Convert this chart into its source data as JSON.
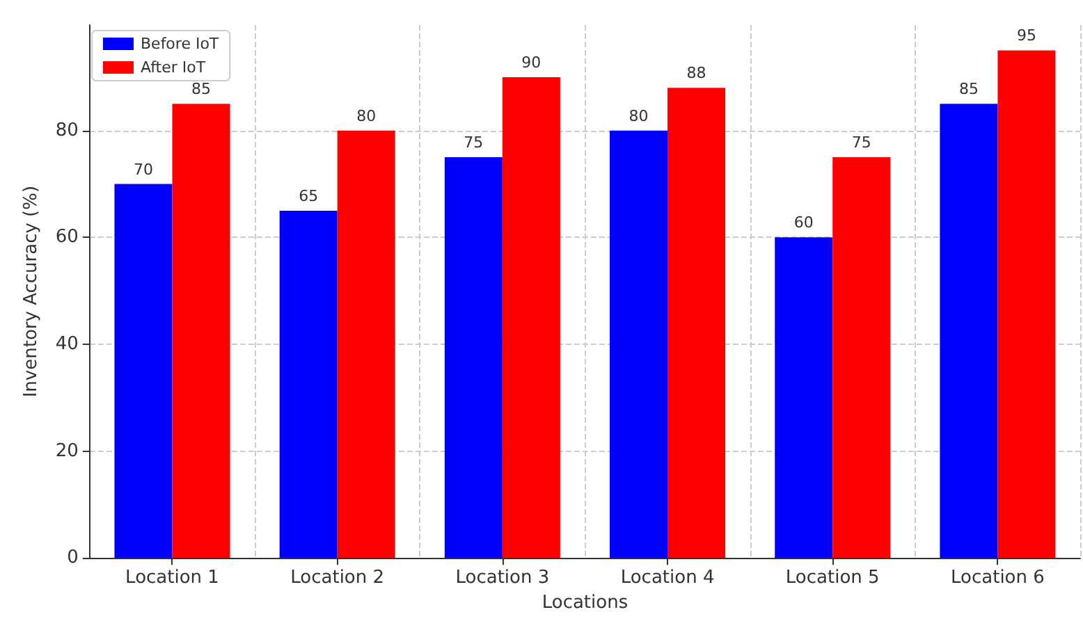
{
  "chart_data": {
    "type": "bar",
    "xlabel": "Locations",
    "ylabel": "Inventory Accuracy (%)",
    "categories": [
      "Location 1",
      "Location 2",
      "Location 3",
      "Location 4",
      "Location 5",
      "Location 6"
    ],
    "series": [
      {
        "name": "Before IoT",
        "color": "#0000ff",
        "values": [
          70,
          65,
          75,
          80,
          60,
          85
        ]
      },
      {
        "name": "After IoT",
        "color": "#ff0000",
        "values": [
          85,
          80,
          90,
          88,
          75,
          95
        ]
      }
    ],
    "ylim": [
      0,
      99.75
    ],
    "yticks": [
      0,
      20,
      40,
      60,
      80
    ],
    "grid": true,
    "legend": "top left",
    "data_labels": true
  }
}
